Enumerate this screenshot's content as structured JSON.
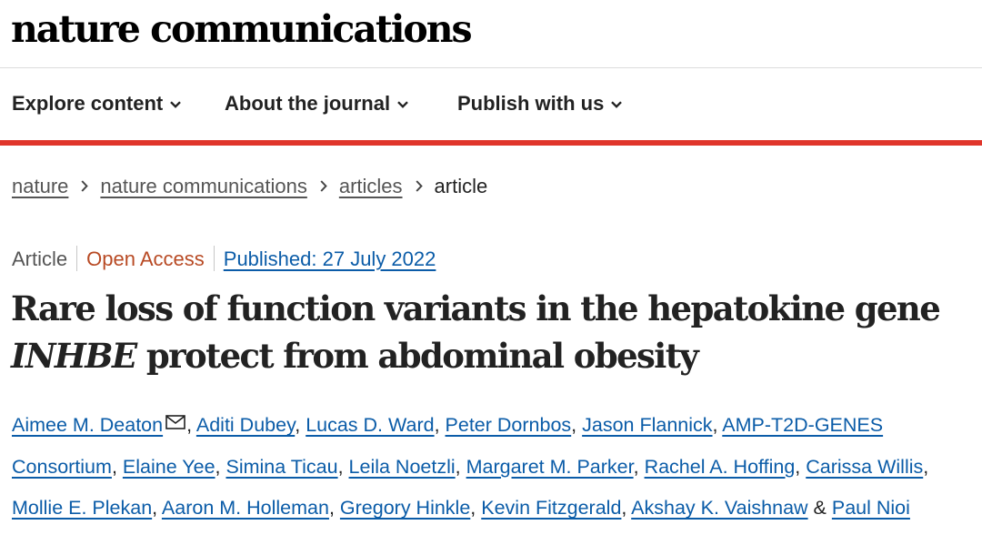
{
  "site": {
    "logo": "nature communications"
  },
  "nav": {
    "items": [
      {
        "label": "Explore content"
      },
      {
        "label": "About the journal"
      },
      {
        "label": "Publish with us"
      }
    ]
  },
  "breadcrumb": {
    "items": [
      "nature",
      "nature communications",
      "articles"
    ],
    "current": "article"
  },
  "article": {
    "type": "Article",
    "access": "Open Access",
    "published": "Published: 27 July 2022",
    "title_line1": "Rare loss of function variants in the hepatokine gene",
    "title_gene": "INHBE",
    "title_rest": " protect from abdominal obesity",
    "authors": [
      "Aimee M. Deaton",
      "Aditi Dubey",
      "Lucas D. Ward",
      "Peter Dornbos",
      "Jason Flannick",
      "AMP-T2D-GENES Consortium",
      "Elaine Yee",
      "Simina Ticau",
      "Leila Noetzli",
      "Margaret M. Parker",
      "Rachel A. Hoffing",
      "Carissa Willis",
      "Mollie E. Plekan",
      "Aaron M. Holleman",
      "Gregory Hinkle",
      "Kevin Fitzgerald",
      "Akshay K. Vaishnaw",
      "Paul Nioi"
    ],
    "author_sep": ", ",
    "author_last_sep": " & "
  }
}
